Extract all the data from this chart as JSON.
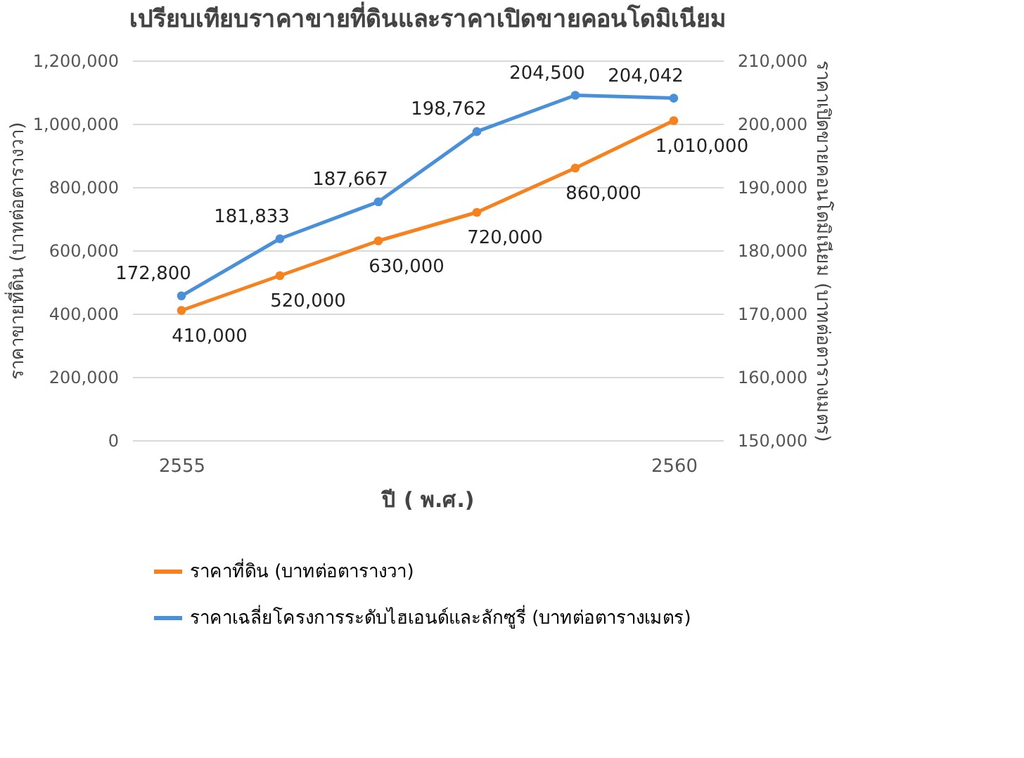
{
  "chart_data": {
    "type": "line",
    "title": "เปรียบเทียบราคาขายที่ดินและราคาเปิดขายคอนโดมิเนียม",
    "xlabel": "ปี ( พ.ศ.)",
    "ylabel": "ราคาขายที่ดิน (บาทต่อตารางวา)",
    "y2label": "ราคาเปิดขายคอนโดมิเนียม (บาทต่อตารางเมตร)",
    "categories": [
      "2555",
      null,
      null,
      null,
      null,
      "2560"
    ],
    "series": [
      {
        "name": "ราคาที่ดิน (บาทต่อตารางวา)",
        "color": "#f5821f",
        "values": [
          410000,
          520000,
          630000,
          720000,
          860000,
          1010000
        ],
        "value_labels": [
          "410,000",
          "520,000",
          "630,000",
          "720,000",
          "860,000",
          "1,010,000"
        ]
      },
      {
        "name": "ราคาเฉลี่ยโครงการระดับไฮเอนด์และลักซูรี่ (บาทต่อตารางเมตร)",
        "color": "#4a90d9",
        "axis": "y2",
        "values": [
          172800,
          181833,
          187667,
          198762,
          204500,
          204042
        ],
        "value_labels": [
          "172,800",
          "181,833",
          "187,667",
          "198,762",
          "204,500",
          "204,042"
        ]
      }
    ],
    "ylim": [
      0,
      1200000
    ],
    "yticks": [
      0,
      {
        "value": 200000,
        "label": "200,000"
      },
      {
        "value": 400000,
        "label": "400,000"
      },
      {
        "value": 600000,
        "label": "600,000"
      },
      {
        "value": 800000,
        "label": "800,000"
      },
      {
        "value": 1000000,
        "label": "1,000,000"
      },
      {
        "value": 1200000,
        "label": "1,200,000"
      }
    ],
    "y2lim": [
      150000,
      210000
    ],
    "y2ticks": [
      {
        "value": 150000,
        "label": "150,000"
      },
      {
        "value": 160000,
        "label": "160,000"
      },
      {
        "value": 170000,
        "label": "170,000"
      },
      {
        "value": 180000,
        "label": "180,000"
      },
      {
        "value": 190000,
        "label": "190,000"
      },
      {
        "value": 200000,
        "label": "200,000"
      },
      {
        "value": 210000,
        "label": "210,000"
      }
    ],
    "grid": "y",
    "legend": "bottom",
    "marker": "circle"
  }
}
